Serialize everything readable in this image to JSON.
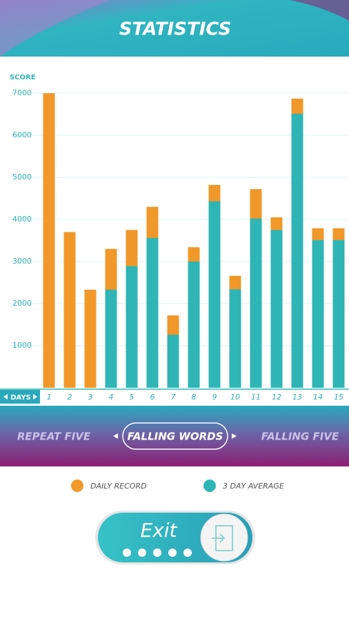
{
  "header": {
    "title": "STATISTICS"
  },
  "modes": [
    "REPEAT FIVE",
    "FALLING WORDS",
    "FALLING FIVE"
  ],
  "button": {
    "label": "Exit"
  },
  "chart_data": {
    "type": "bar",
    "ylabel": "SCORE",
    "xlabel": "DAYS",
    "categories": [
      "1",
      "2",
      "3",
      "4",
      "5",
      "6",
      "7",
      "8",
      "9",
      "10",
      "11",
      "12",
      "13",
      "14",
      "15"
    ],
    "series": [
      {
        "name": "DAILY RECORD",
        "color": "#f0982a",
        "values": [
          7000,
          3700,
          2330,
          3300,
          3750,
          4300,
          1720,
          3340,
          4820,
          2660,
          4720,
          4050,
          6870,
          3790,
          3790
        ]
      },
      {
        "name": "3 DAY AVERAGE",
        "color": "#2fb5b5",
        "values": [
          null,
          null,
          null,
          2330,
          2890,
          3560,
          1260,
          3000,
          4430,
          2340,
          4020,
          3750,
          6510,
          3510,
          3510
        ]
      }
    ],
    "ylim": [
      0,
      7000
    ],
    "yticks": [
      1000,
      2000,
      3000,
      4000,
      5000,
      6000,
      7000
    ],
    "grid": true
  }
}
